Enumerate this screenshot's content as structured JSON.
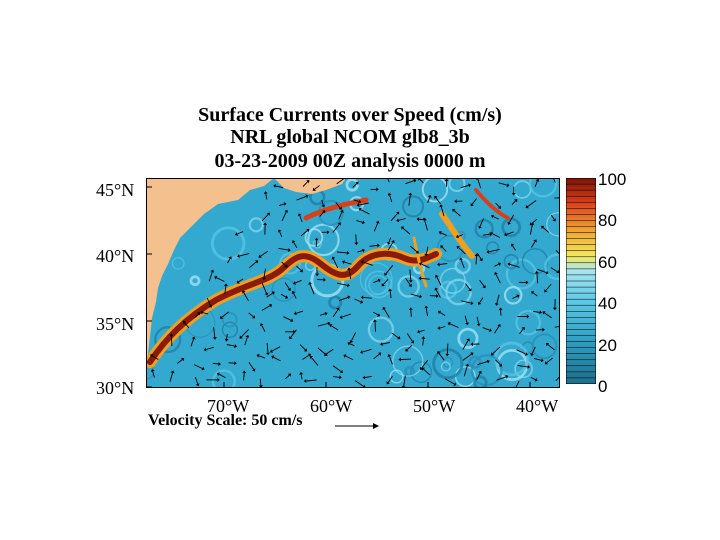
{
  "title": {
    "line1": "Surface Currents over Speed (cm/s)",
    "line2": "NRL global NCOM glb8_3b",
    "line3": "03-23-2009 00Z analysis   0000 m"
  },
  "axes": {
    "lat_labels": [
      "45°N",
      "40°N",
      "35°N",
      "30°N"
    ],
    "lon_labels": [
      "70°W",
      "60°W",
      "50°W",
      "40°W"
    ]
  },
  "colorbar": {
    "labels": [
      "100",
      "80",
      "60",
      "40",
      "20",
      "0"
    ],
    "range": [
      0,
      100
    ],
    "colors": [
      "#1e6e8c",
      "#2e9cc0",
      "#5bc8e6",
      "#a8e6f0",
      "#f2e860",
      "#f0a030",
      "#d8401c",
      "#7a1408"
    ]
  },
  "velocity_scale": {
    "text": "Velocity Scale:  50 cm/s"
  },
  "map_colors": {
    "land": "#f4c08e",
    "ocean": "#34a9cf",
    "jet_core": "#8a1a0a",
    "jet_edge": "#f0a020"
  }
}
